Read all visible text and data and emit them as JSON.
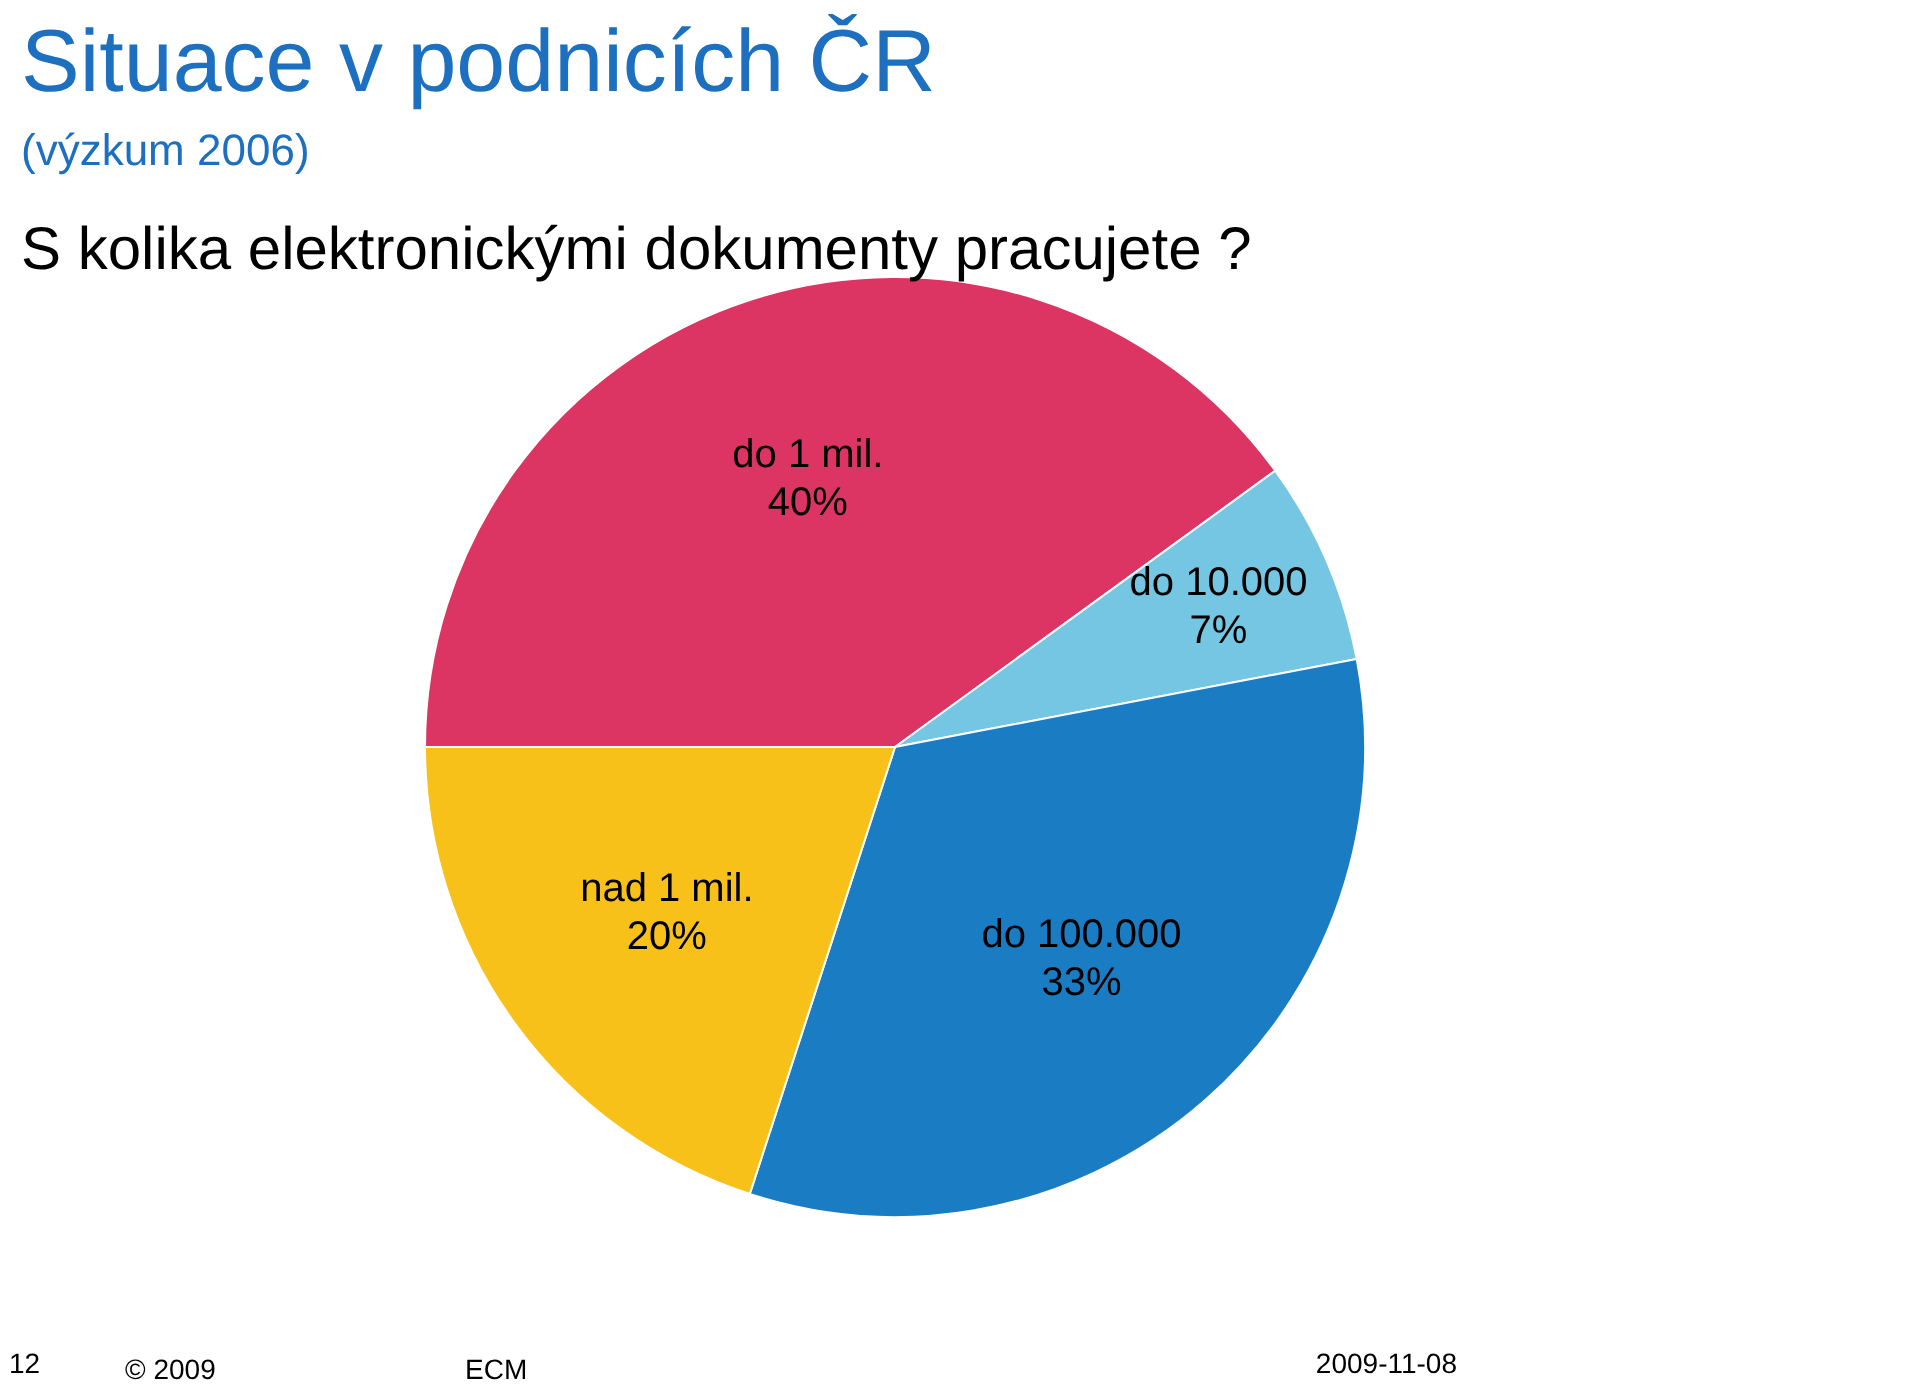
{
  "chart_data": {
    "type": "pie",
    "title": "Situace v podnicích ČR",
    "subtitle": "(výzkum 2006)",
    "annotations": [
      "S kolika elektronickými dokumenty pracujete ?",
      "12",
      "© 2009",
      "ECM",
      "2009-11-08"
    ],
    "categories": [
      "do 1 mil.",
      "do 10.000",
      "do 100.000",
      "nad 1 mil."
    ],
    "values": [
      40,
      7,
      33,
      20
    ],
    "colors": [
      "#dc3463",
      "#74c6e2",
      "#1a7dc4",
      "#f7c11a"
    ],
    "value_labels": [
      "40%",
      "7%",
      "33%",
      "20%"
    ]
  }
}
